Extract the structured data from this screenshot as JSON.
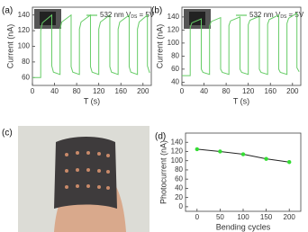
{
  "chart_data": [
    {
      "type": "line",
      "panel_label": "(a)",
      "xlabel": "T (s)",
      "ylabel": "Current (nA)",
      "annotation": {
        "main": "V",
        "sub": "DS",
        "tail": " = 5V"
      },
      "x": [
        0,
        15,
        15,
        18,
        35,
        35,
        38,
        50,
        50,
        53,
        70,
        70,
        73,
        85,
        85,
        88,
        105,
        105,
        108,
        120,
        120,
        123,
        140,
        140,
        143,
        155,
        155,
        158,
        175,
        175,
        178,
        190,
        190,
        193,
        208,
        208,
        212
      ],
      "series": [
        {
          "name": "532 nm",
          "color": "#66cc66",
          "values": [
            60,
            60,
            120,
            130,
            140,
            75,
            67,
            64,
            122,
            131,
            140,
            74,
            67,
            64,
            122,
            131,
            140,
            74,
            67,
            64,
            122,
            131,
            140,
            74,
            67,
            64,
            122,
            131,
            140,
            74,
            67,
            64,
            122,
            131,
            140,
            75,
            66
          ]
        }
      ],
      "xlim": [
        0,
        215
      ],
      "ylim": [
        50,
        150
      ],
      "xticks": [
        0,
        40,
        80,
        120,
        160,
        200
      ],
      "yticks": [
        60,
        80,
        100,
        120,
        140
      ]
    },
    {
      "type": "line",
      "panel_label": "(b)",
      "xlabel": "T (s)",
      "ylabel": "Current (nA)",
      "annotation": {
        "main": "V",
        "sub": "DS",
        "tail": " = 5V"
      },
      "x": [
        0,
        15,
        15,
        18,
        35,
        35,
        38,
        50,
        50,
        53,
        70,
        70,
        73,
        85,
        85,
        88,
        105,
        105,
        108,
        120,
        120,
        123,
        140,
        140,
        143,
        155,
        155,
        158,
        175,
        175,
        178,
        190,
        190,
        193,
        208,
        208,
        212
      ],
      "series": [
        {
          "name": "532 nm",
          "color": "#66cc66",
          "values": [
            50,
            50,
            124,
            131,
            137,
            60,
            55,
            52,
            126,
            133,
            139,
            60,
            55,
            52,
            127,
            134,
            140,
            60,
            55,
            52,
            128,
            135,
            141,
            60,
            55,
            52,
            129,
            136,
            143,
            60,
            55,
            52,
            130,
            138,
            146,
            62,
            56
          ]
        }
      ],
      "xlim": [
        0,
        215
      ],
      "ylim": [
        35,
        155
      ],
      "xticks": [
        0,
        40,
        80,
        120,
        160,
        200
      ],
      "yticks": [
        40,
        60,
        80,
        100,
        120,
        140
      ]
    },
    {
      "type": "line",
      "panel_label": "(d)",
      "xlabel": "Bending cycles",
      "ylabel": "Photocurrent (nA)",
      "x": [
        0,
        50,
        100,
        150,
        200
      ],
      "values": [
        125,
        120,
        114,
        104,
        97
      ],
      "color": "#222222",
      "marker_color": "#33dd33",
      "xlim": [
        -25,
        225
      ],
      "ylim": [
        -10,
        160
      ],
      "xticks": [
        0,
        50,
        100,
        150,
        200
      ],
      "yticks": [
        0,
        20,
        40,
        60,
        80,
        100,
        120,
        140
      ]
    }
  ],
  "photo_panel": {
    "label": "(c)"
  }
}
